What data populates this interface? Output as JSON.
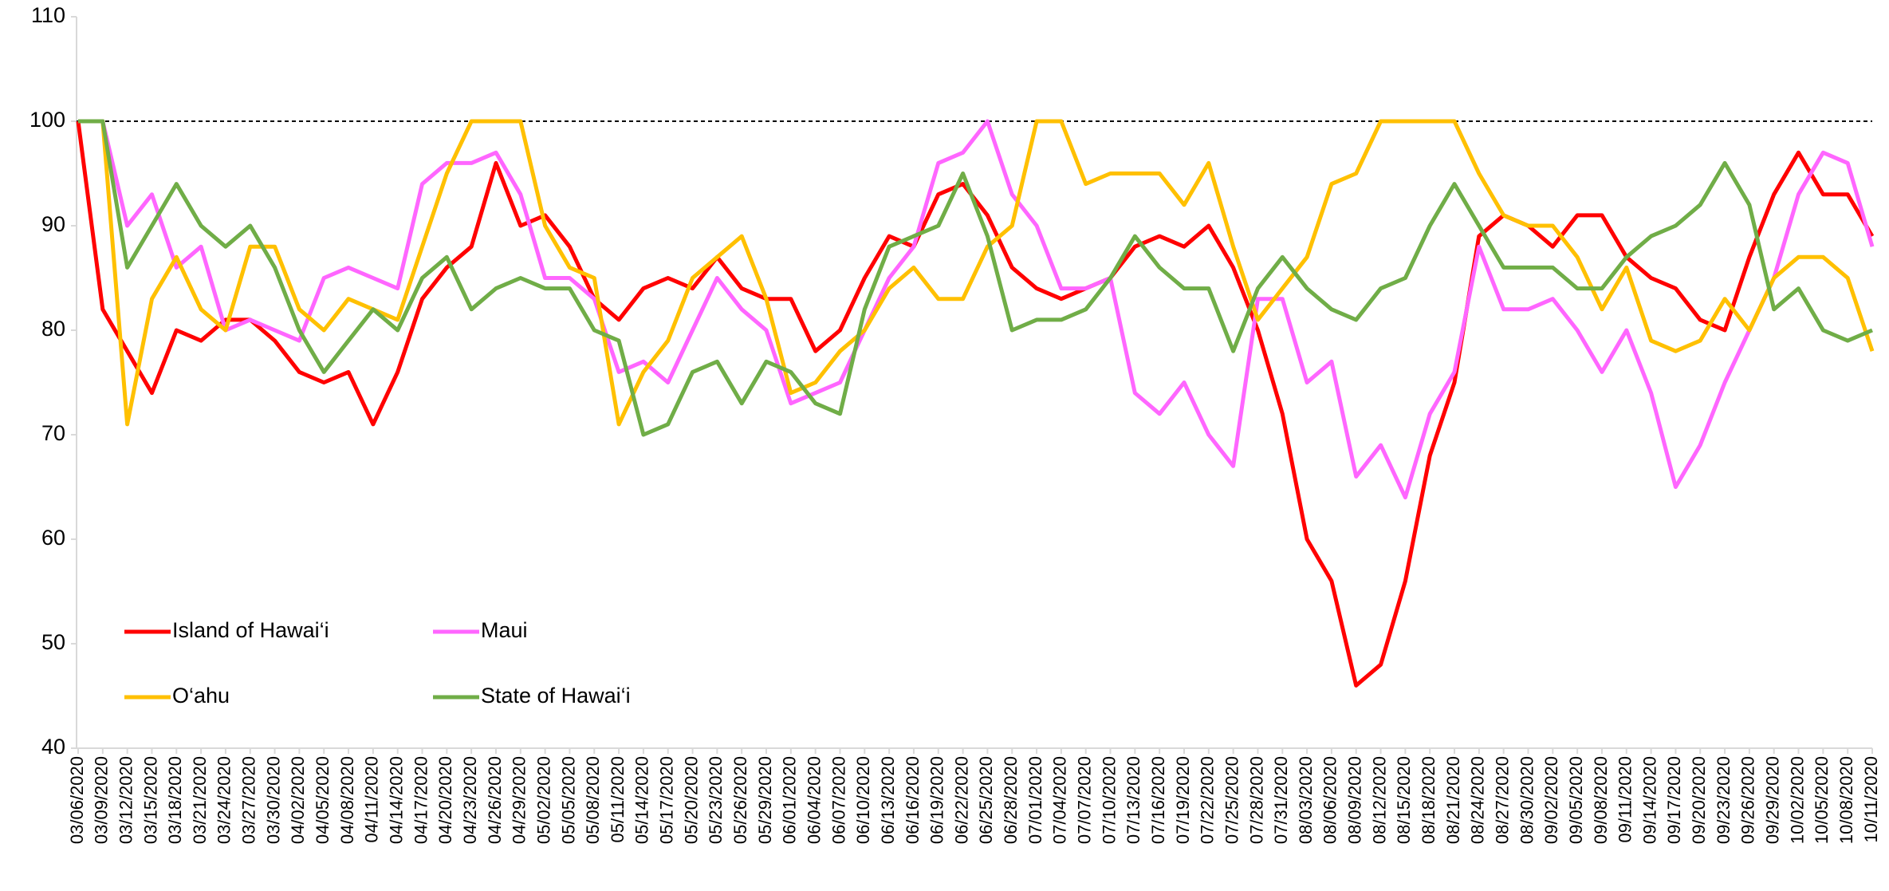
{
  "chart_data": {
    "type": "line",
    "categories": [
      "03/06/2020",
      "03/09/2020",
      "03/12/2020",
      "03/15/2020",
      "03/18/2020",
      "03/21/2020",
      "03/24/2020",
      "03/27/2020",
      "03/30/2020",
      "04/02/2020",
      "04/05/2020",
      "04/08/2020",
      "04/11/2020",
      "04/14/2020",
      "04/17/2020",
      "04/20/2020",
      "04/23/2020",
      "04/26/2020",
      "04/29/2020",
      "05/02/2020",
      "05/05/2020",
      "05/08/2020",
      "05/11/2020",
      "05/14/2020",
      "05/17/2020",
      "05/20/2020",
      "05/23/2020",
      "05/26/2020",
      "05/29/2020",
      "06/01/2020",
      "06/04/2020",
      "06/07/2020",
      "06/10/2020",
      "06/13/2020",
      "06/16/2020",
      "06/19/2020",
      "06/22/2020",
      "06/25/2020",
      "06/28/2020",
      "07/01/2020",
      "07/04/2020",
      "07/07/2020",
      "07/10/2020",
      "07/13/2020",
      "07/16/2020",
      "07/19/2020",
      "07/22/2020",
      "07/25/2020",
      "07/28/2020",
      "07/31/2020",
      "08/03/2020",
      "08/06/2020",
      "08/09/2020",
      "08/12/2020",
      "08/15/2020",
      "08/18/2020",
      "08/21/2020",
      "08/24/2020",
      "08/27/2020",
      "08/30/2020",
      "09/02/2020",
      "09/05/2020",
      "09/08/2020",
      "09/11/2020",
      "09/14/2020",
      "09/17/2020",
      "09/20/2020",
      "09/23/2020",
      "09/26/2020",
      "09/29/2020",
      "10/02/2020",
      "10/05/2020",
      "10/08/2020",
      "10/11/2020"
    ],
    "series": [
      {
        "name": "Island of Hawai‘i",
        "color": "#ff0000",
        "values": [
          100,
          82,
          78,
          74,
          80,
          79,
          81,
          81,
          79,
          76,
          75,
          76,
          71,
          76,
          83,
          86,
          88,
          96,
          90,
          91,
          88,
          83,
          81,
          84,
          85,
          84,
          87,
          84,
          83,
          83,
          78,
          80,
          85,
          89,
          88,
          93,
          94,
          91,
          86,
          84,
          83,
          84,
          85,
          88,
          89,
          88,
          90,
          86,
          80,
          72,
          60,
          56,
          46,
          48,
          56,
          68,
          75,
          89,
          91,
          90,
          88,
          91,
          91,
          87,
          85,
          84,
          81,
          80,
          87,
          93,
          97,
          93,
          93,
          89
        ]
      },
      {
        "name": "Maui",
        "color": "#ff66ff",
        "values": [
          100,
          100,
          90,
          93,
          86,
          88,
          80,
          81,
          80,
          79,
          85,
          86,
          85,
          84,
          94,
          96,
          96,
          97,
          93,
          85,
          85,
          83,
          76,
          77,
          75,
          80,
          85,
          82,
          80,
          73,
          74,
          75,
          80,
          85,
          88,
          96,
          97,
          100,
          93,
          90,
          84,
          84,
          85,
          74,
          72,
          75,
          70,
          67,
          83,
          83,
          75,
          77,
          66,
          69,
          64,
          72,
          76,
          88,
          82,
          82,
          83,
          80,
          76,
          80,
          74,
          65,
          69,
          75,
          80,
          85,
          93,
          97,
          96,
          88
        ]
      },
      {
        "name": "O‘ahu",
        "color": "#ffc000",
        "values": [
          100,
          100,
          71,
          83,
          87,
          82,
          80,
          88,
          88,
          82,
          80,
          83,
          82,
          81,
          88,
          95,
          100,
          100,
          100,
          90,
          86,
          85,
          71,
          76,
          79,
          85,
          87,
          89,
          83,
          74,
          75,
          78,
          80,
          84,
          86,
          83,
          83,
          88,
          90,
          100,
          100,
          94,
          95,
          95,
          95,
          92,
          96,
          88,
          81,
          84,
          87,
          94,
          95,
          100,
          100,
          100,
          100,
          95,
          91,
          90,
          90,
          87,
          82,
          86,
          79,
          78,
          79,
          83,
          80,
          85,
          87,
          87,
          85,
          78
        ]
      },
      {
        "name": "State of Hawai‘i",
        "color": "#70ad47",
        "values": [
          100,
          100,
          86,
          90,
          94,
          90,
          88,
          90,
          86,
          80,
          76,
          79,
          82,
          80,
          85,
          87,
          82,
          84,
          85,
          84,
          84,
          80,
          79,
          70,
          71,
          76,
          77,
          73,
          77,
          76,
          73,
          72,
          82,
          88,
          89,
          90,
          95,
          89,
          80,
          81,
          81,
          82,
          85,
          89,
          86,
          84,
          84,
          78,
          84,
          87,
          84,
          82,
          81,
          84,
          85,
          90,
          94,
          90,
          86,
          86,
          86,
          84,
          84,
          87,
          89,
          90,
          92,
          96,
          92,
          82,
          84,
          80,
          79,
          80
        ]
      }
    ],
    "ylim": [
      40,
      110
    ],
    "yticks": [
      40,
      50,
      60,
      70,
      80,
      90,
      100,
      110
    ],
    "reference_line": 100,
    "grid": false,
    "legend": "lower left"
  }
}
